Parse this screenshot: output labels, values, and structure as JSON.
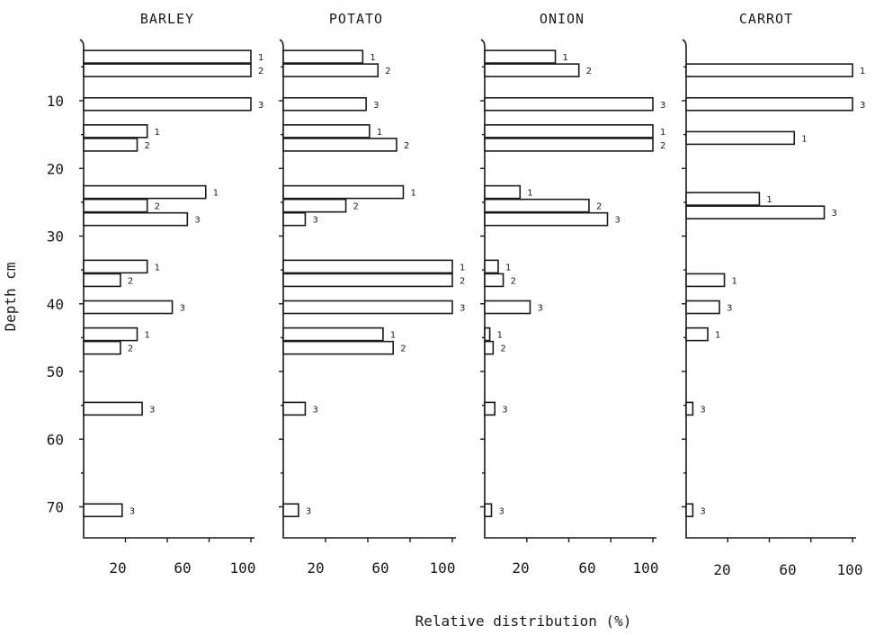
{
  "chart_data": {
    "type": "bar",
    "orientation": "horizontal",
    "xlabel": "Relative distribution (%)",
    "ylabel": "Depth cm",
    "ylim": [
      0,
      75
    ],
    "xlim": [
      0,
      100
    ],
    "y_ticks": [
      10,
      20,
      30,
      40,
      50,
      60,
      70
    ],
    "y_minor_ticks": [
      5,
      15,
      25,
      35,
      45,
      55,
      65
    ],
    "x_tick_labels": [
      "20",
      "60",
      "100"
    ],
    "carrot_x_tick_labels": [
      "20",
      "60",
      "100"
    ],
    "panels": [
      {
        "title": "BARLEY",
        "bars": [
          {
            "depth": 3.5,
            "value": 100,
            "label": "1"
          },
          {
            "depth": 5.5,
            "value": 100,
            "label": "2"
          },
          {
            "depth": 10.5,
            "value": 100,
            "label": "3"
          },
          {
            "depth": 14.5,
            "value": 38,
            "label": "1"
          },
          {
            "depth": 16.5,
            "value": 32,
            "label": "2"
          },
          {
            "depth": 23.5,
            "value": 73,
            "label": "1"
          },
          {
            "depth": 25.5,
            "value": 38,
            "label": "2"
          },
          {
            "depth": 27.5,
            "value": 62,
            "label": "3"
          },
          {
            "depth": 34.5,
            "value": 38,
            "label": "1"
          },
          {
            "depth": 36.5,
            "value": 22,
            "label": "2"
          },
          {
            "depth": 40.5,
            "value": 53,
            "label": "3"
          },
          {
            "depth": 44.5,
            "value": 32,
            "label": "1"
          },
          {
            "depth": 46.5,
            "value": 22,
            "label": "2"
          },
          {
            "depth": 55.5,
            "value": 35,
            "label": "3"
          },
          {
            "depth": 70.5,
            "value": 23,
            "label": "3"
          }
        ]
      },
      {
        "title": "POTATO",
        "bars": [
          {
            "depth": 3.5,
            "value": 47,
            "label": "1"
          },
          {
            "depth": 5.5,
            "value": 56,
            "label": "2"
          },
          {
            "depth": 10.5,
            "value": 49,
            "label": "3"
          },
          {
            "depth": 14.5,
            "value": 51,
            "label": "1"
          },
          {
            "depth": 16.5,
            "value": 67,
            "label": "2"
          },
          {
            "depth": 23.5,
            "value": 71,
            "label": "1"
          },
          {
            "depth": 25.5,
            "value": 37,
            "label": "2"
          },
          {
            "depth": 27.5,
            "value": 13,
            "label": "3"
          },
          {
            "depth": 34.5,
            "value": 100,
            "label": "1"
          },
          {
            "depth": 36.5,
            "value": 100,
            "label": "2"
          },
          {
            "depth": 40.5,
            "value": 100,
            "label": "3"
          },
          {
            "depth": 44.5,
            "value": 59,
            "label": "1"
          },
          {
            "depth": 46.5,
            "value": 65,
            "label": "2"
          },
          {
            "depth": 55.5,
            "value": 13,
            "label": "3"
          },
          {
            "depth": 70.5,
            "value": 9,
            "label": "3"
          }
        ]
      },
      {
        "title": "ONION",
        "bars": [
          {
            "depth": 3.5,
            "value": 42,
            "label": "1"
          },
          {
            "depth": 5.5,
            "value": 56,
            "label": "2"
          },
          {
            "depth": 10.5,
            "value": 100,
            "label": "3"
          },
          {
            "depth": 14.5,
            "value": 100,
            "label": "1"
          },
          {
            "depth": 16.5,
            "value": 100,
            "label": "2"
          },
          {
            "depth": 23.5,
            "value": 21,
            "label": "1"
          },
          {
            "depth": 25.5,
            "value": 62,
            "label": "2"
          },
          {
            "depth": 27.5,
            "value": 73,
            "label": "3"
          },
          {
            "depth": 34.5,
            "value": 8,
            "label": "1"
          },
          {
            "depth": 36.5,
            "value": 11,
            "label": "2"
          },
          {
            "depth": 40.5,
            "value": 27,
            "label": "3"
          },
          {
            "depth": 44.5,
            "value": 3,
            "label": "1"
          },
          {
            "depth": 46.5,
            "value": 5,
            "label": "2"
          },
          {
            "depth": 55.5,
            "value": 6,
            "label": "3"
          },
          {
            "depth": 70.5,
            "value": 4,
            "label": "3"
          }
        ]
      },
      {
        "title": "CARROT",
        "bars": [
          {
            "depth": 5.5,
            "value": 100,
            "label": "1"
          },
          {
            "depth": 10.5,
            "value": 100,
            "label": "3"
          },
          {
            "depth": 15.5,
            "value": 65,
            "label": "1"
          },
          {
            "depth": 24.5,
            "value": 44,
            "label": "1"
          },
          {
            "depth": 26.5,
            "value": 83,
            "label": "3"
          },
          {
            "depth": 36.5,
            "value": 23,
            "label": "1"
          },
          {
            "depth": 40.5,
            "value": 20,
            "label": "3"
          },
          {
            "depth": 44.5,
            "value": 13,
            "label": "1"
          },
          {
            "depth": 55.5,
            "value": 4,
            "label": "3"
          },
          {
            "depth": 70.5,
            "value": 4,
            "label": "3"
          }
        ]
      }
    ]
  }
}
